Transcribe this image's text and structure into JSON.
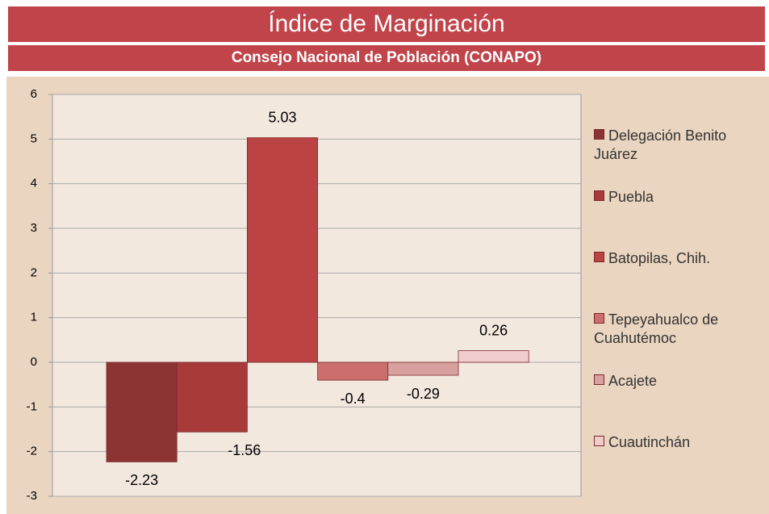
{
  "chart_data": {
    "type": "bar",
    "title": "Índice de Marginación",
    "subtitle": "Consejo Nacional de Población (CONAPO)",
    "series": [
      {
        "name": "Delegación Benito Juárez",
        "color": "#8c3333",
        "values": [
          -2.23
        ]
      },
      {
        "name": "Puebla",
        "color": "#a83a3a",
        "values": [
          -1.56
        ]
      },
      {
        "name": "Batopilas, Chih.",
        "color": "#bb4343",
        "values": [
          5.03
        ]
      },
      {
        "name": "Tepeyahualco de Cuahutémoc",
        "color": "#cc6e6e",
        "values": [
          -0.4
        ]
      },
      {
        "name": "Acajete",
        "color": "#d9a0a0",
        "values": [
          -0.29
        ]
      },
      {
        "name": "Cuautinchán",
        "color": "#f0cccc",
        "values": [
          0.26
        ]
      }
    ],
    "ylim": [
      -3,
      6
    ],
    "yticks": [
      -3,
      -2,
      -1,
      0,
      1,
      2,
      3,
      4,
      5,
      6
    ],
    "grid": true,
    "legend": "right"
  }
}
